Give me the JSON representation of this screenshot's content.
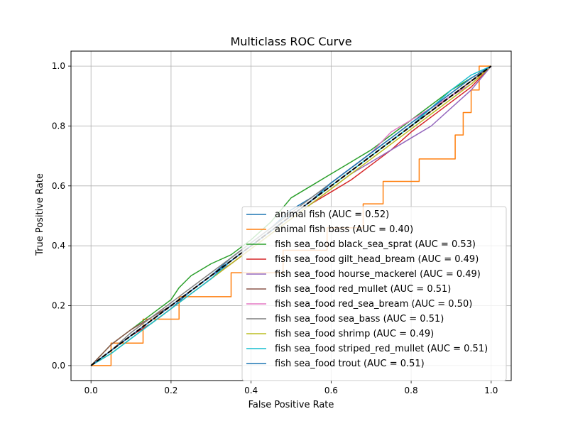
{
  "chart_data": {
    "type": "line",
    "title": "Multiclass ROC Curve",
    "xlabel": "False Positive Rate",
    "ylabel": "True Positive Rate",
    "xlim": [
      -0.05,
      1.05
    ],
    "ylim": [
      -0.05,
      1.05
    ],
    "xticks": [
      "0.0",
      "0.2",
      "0.4",
      "0.6",
      "0.8",
      "1.0"
    ],
    "yticks": [
      "0.0",
      "0.2",
      "0.4",
      "0.6",
      "0.8",
      "1.0"
    ],
    "grid": true,
    "legend_position": "lower-right",
    "series": [
      {
        "name": "animal fish (AUC = 0.52)",
        "color": "#1f77b4",
        "step": false,
        "points": [
          [
            0,
            0
          ],
          [
            0.05,
            0.05
          ],
          [
            0.1,
            0.1
          ],
          [
            0.15,
            0.14
          ],
          [
            0.2,
            0.19
          ],
          [
            0.25,
            0.25
          ],
          [
            0.3,
            0.3
          ],
          [
            0.35,
            0.36
          ],
          [
            0.4,
            0.41
          ],
          [
            0.45,
            0.46
          ],
          [
            0.5,
            0.52
          ],
          [
            0.55,
            0.56
          ],
          [
            0.6,
            0.61
          ],
          [
            0.65,
            0.66
          ],
          [
            0.7,
            0.71
          ],
          [
            0.75,
            0.76
          ],
          [
            0.8,
            0.81
          ],
          [
            0.85,
            0.86
          ],
          [
            0.9,
            0.9
          ],
          [
            0.95,
            0.95
          ],
          [
            1,
            1
          ]
        ]
      },
      {
        "name": "animal fish bass (AUC = 0.40)",
        "color": "#ff7f0e",
        "step": true,
        "points": [
          [
            0,
            0
          ],
          [
            0.05,
            0
          ],
          [
            0.05,
            0.075
          ],
          [
            0.13,
            0.075
          ],
          [
            0.13,
            0.155
          ],
          [
            0.22,
            0.155
          ],
          [
            0.22,
            0.23
          ],
          [
            0.35,
            0.23
          ],
          [
            0.35,
            0.31
          ],
          [
            0.48,
            0.31
          ],
          [
            0.48,
            0.385
          ],
          [
            0.59,
            0.385
          ],
          [
            0.59,
            0.46
          ],
          [
            0.68,
            0.46
          ],
          [
            0.68,
            0.54
          ],
          [
            0.73,
            0.54
          ],
          [
            0.73,
            0.615
          ],
          [
            0.82,
            0.615
          ],
          [
            0.82,
            0.69
          ],
          [
            0.91,
            0.69
          ],
          [
            0.91,
            0.77
          ],
          [
            0.93,
            0.77
          ],
          [
            0.93,
            0.845
          ],
          [
            0.95,
            0.845
          ],
          [
            0.95,
            0.92
          ],
          [
            0.97,
            0.92
          ],
          [
            0.97,
            1
          ],
          [
            1,
            1
          ]
        ]
      },
      {
        "name": "fish sea_food black_sea_sprat (AUC = 0.53)",
        "color": "#2ca02c",
        "step": false,
        "points": [
          [
            0,
            0
          ],
          [
            0.05,
            0.07
          ],
          [
            0.1,
            0.12
          ],
          [
            0.15,
            0.17
          ],
          [
            0.2,
            0.22
          ],
          [
            0.22,
            0.26
          ],
          [
            0.25,
            0.3
          ],
          [
            0.3,
            0.34
          ],
          [
            0.35,
            0.37
          ],
          [
            0.4,
            0.42
          ],
          [
            0.45,
            0.48
          ],
          [
            0.5,
            0.56
          ],
          [
            0.55,
            0.6
          ],
          [
            0.6,
            0.64
          ],
          [
            0.65,
            0.68
          ],
          [
            0.7,
            0.72
          ],
          [
            0.75,
            0.77
          ],
          [
            0.8,
            0.82
          ],
          [
            0.85,
            0.87
          ],
          [
            0.9,
            0.92
          ],
          [
            0.95,
            0.96
          ],
          [
            1,
            1
          ]
        ]
      },
      {
        "name": "fish sea_food gilt_head_bream (AUC = 0.49)",
        "color": "#d62728",
        "step": false,
        "points": [
          [
            0,
            0
          ],
          [
            0.05,
            0.05
          ],
          [
            0.1,
            0.1
          ],
          [
            0.15,
            0.14
          ],
          [
            0.2,
            0.19
          ],
          [
            0.25,
            0.24
          ],
          [
            0.3,
            0.29
          ],
          [
            0.35,
            0.34
          ],
          [
            0.4,
            0.39
          ],
          [
            0.45,
            0.44
          ],
          [
            0.5,
            0.49
          ],
          [
            0.55,
            0.54
          ],
          [
            0.6,
            0.58
          ],
          [
            0.65,
            0.62
          ],
          [
            0.7,
            0.67
          ],
          [
            0.75,
            0.72
          ],
          [
            0.8,
            0.78
          ],
          [
            0.85,
            0.83
          ],
          [
            0.9,
            0.88
          ],
          [
            0.95,
            0.93
          ],
          [
            1,
            1
          ]
        ]
      },
      {
        "name": "fish sea_food hourse_mackerel (AUC = 0.49)",
        "color": "#9467bd",
        "step": false,
        "points": [
          [
            0,
            0
          ],
          [
            0.05,
            0.05
          ],
          [
            0.1,
            0.1
          ],
          [
            0.15,
            0.15
          ],
          [
            0.2,
            0.2
          ],
          [
            0.25,
            0.25
          ],
          [
            0.3,
            0.3
          ],
          [
            0.35,
            0.34
          ],
          [
            0.4,
            0.39
          ],
          [
            0.45,
            0.44
          ],
          [
            0.5,
            0.49
          ],
          [
            0.55,
            0.54
          ],
          [
            0.6,
            0.59
          ],
          [
            0.65,
            0.64
          ],
          [
            0.7,
            0.68
          ],
          [
            0.75,
            0.72
          ],
          [
            0.8,
            0.76
          ],
          [
            0.85,
            0.8
          ],
          [
            0.9,
            0.86
          ],
          [
            0.95,
            0.92
          ],
          [
            1,
            1
          ]
        ]
      },
      {
        "name": "fish sea_food red_mullet (AUC = 0.51)",
        "color": "#8c564b",
        "step": false,
        "points": [
          [
            0,
            0
          ],
          [
            0.05,
            0.07
          ],
          [
            0.1,
            0.12
          ],
          [
            0.15,
            0.16
          ],
          [
            0.2,
            0.2
          ],
          [
            0.25,
            0.25
          ],
          [
            0.3,
            0.3
          ],
          [
            0.35,
            0.35
          ],
          [
            0.4,
            0.4
          ],
          [
            0.45,
            0.45
          ],
          [
            0.5,
            0.5
          ],
          [
            0.55,
            0.55
          ],
          [
            0.6,
            0.6
          ],
          [
            0.65,
            0.65
          ],
          [
            0.7,
            0.7
          ],
          [
            0.75,
            0.75
          ],
          [
            0.8,
            0.8
          ],
          [
            0.85,
            0.85
          ],
          [
            0.9,
            0.9
          ],
          [
            0.95,
            0.95
          ],
          [
            1,
            1
          ]
        ]
      },
      {
        "name": "fish sea_food red_sea_bream (AUC = 0.50)",
        "color": "#e377c2",
        "step": false,
        "points": [
          [
            0,
            0
          ],
          [
            0.05,
            0.05
          ],
          [
            0.1,
            0.1
          ],
          [
            0.15,
            0.15
          ],
          [
            0.2,
            0.2
          ],
          [
            0.25,
            0.25
          ],
          [
            0.3,
            0.3
          ],
          [
            0.35,
            0.35
          ],
          [
            0.4,
            0.4
          ],
          [
            0.45,
            0.45
          ],
          [
            0.5,
            0.5
          ],
          [
            0.55,
            0.55
          ],
          [
            0.6,
            0.61
          ],
          [
            0.65,
            0.66
          ],
          [
            0.7,
            0.71
          ],
          [
            0.75,
            0.78
          ],
          [
            0.8,
            0.82
          ],
          [
            0.85,
            0.86
          ],
          [
            0.9,
            0.9
          ],
          [
            0.95,
            0.94
          ],
          [
            1,
            1
          ]
        ]
      },
      {
        "name": "fish sea_food sea_bass (AUC = 0.51)",
        "color": "#7f7f7f",
        "step": false,
        "points": [
          [
            0,
            0
          ],
          [
            0.05,
            0.05
          ],
          [
            0.1,
            0.11
          ],
          [
            0.15,
            0.16
          ],
          [
            0.2,
            0.21
          ],
          [
            0.25,
            0.26
          ],
          [
            0.3,
            0.31
          ],
          [
            0.35,
            0.36
          ],
          [
            0.4,
            0.41
          ],
          [
            0.45,
            0.46
          ],
          [
            0.5,
            0.51
          ],
          [
            0.55,
            0.56
          ],
          [
            0.6,
            0.61
          ],
          [
            0.65,
            0.66
          ],
          [
            0.7,
            0.71
          ],
          [
            0.75,
            0.76
          ],
          [
            0.8,
            0.81
          ],
          [
            0.85,
            0.86
          ],
          [
            0.9,
            0.91
          ],
          [
            0.95,
            0.96
          ],
          [
            1,
            1
          ]
        ]
      },
      {
        "name": "fish sea_food shrimp (AUC = 0.49)",
        "color": "#bcbd22",
        "step": false,
        "points": [
          [
            0,
            0
          ],
          [
            0.05,
            0.04
          ],
          [
            0.1,
            0.09
          ],
          [
            0.15,
            0.14
          ],
          [
            0.2,
            0.19
          ],
          [
            0.25,
            0.24
          ],
          [
            0.3,
            0.29
          ],
          [
            0.35,
            0.34
          ],
          [
            0.4,
            0.39
          ],
          [
            0.45,
            0.44
          ],
          [
            0.5,
            0.49
          ],
          [
            0.55,
            0.54
          ],
          [
            0.6,
            0.59
          ],
          [
            0.65,
            0.64
          ],
          [
            0.7,
            0.69
          ],
          [
            0.75,
            0.74
          ],
          [
            0.8,
            0.79
          ],
          [
            0.85,
            0.84
          ],
          [
            0.9,
            0.89
          ],
          [
            0.95,
            0.94
          ],
          [
            1,
            1
          ]
        ]
      },
      {
        "name": "fish sea_food striped_red_mullet (AUC = 0.51)",
        "color": "#17becf",
        "step": false,
        "points": [
          [
            0,
            0
          ],
          [
            0.05,
            0.04
          ],
          [
            0.1,
            0.09
          ],
          [
            0.15,
            0.14
          ],
          [
            0.2,
            0.19
          ],
          [
            0.25,
            0.24
          ],
          [
            0.3,
            0.29
          ],
          [
            0.35,
            0.35
          ],
          [
            0.4,
            0.4
          ],
          [
            0.45,
            0.45
          ],
          [
            0.5,
            0.5
          ],
          [
            0.55,
            0.55
          ],
          [
            0.6,
            0.6
          ],
          [
            0.65,
            0.65
          ],
          [
            0.7,
            0.7
          ],
          [
            0.75,
            0.75
          ],
          [
            0.8,
            0.8
          ],
          [
            0.85,
            0.86
          ],
          [
            0.9,
            0.92
          ],
          [
            0.95,
            0.97
          ],
          [
            1,
            1
          ]
        ]
      },
      {
        "name": "fish sea_food trout (AUC = 0.51)",
        "color": "#1f77b4",
        "step": false,
        "points": [
          [
            0,
            0
          ],
          [
            0.05,
            0.05
          ],
          [
            0.1,
            0.1
          ],
          [
            0.15,
            0.15
          ],
          [
            0.2,
            0.2
          ],
          [
            0.25,
            0.25
          ],
          [
            0.3,
            0.3
          ],
          [
            0.35,
            0.35
          ],
          [
            0.4,
            0.4
          ],
          [
            0.45,
            0.45
          ],
          [
            0.5,
            0.5
          ],
          [
            0.55,
            0.55
          ],
          [
            0.6,
            0.61
          ],
          [
            0.65,
            0.66
          ],
          [
            0.7,
            0.71
          ],
          [
            0.75,
            0.76
          ],
          [
            0.8,
            0.81
          ],
          [
            0.85,
            0.86
          ],
          [
            0.9,
            0.91
          ],
          [
            0.95,
            0.96
          ],
          [
            1,
            1
          ]
        ]
      }
    ],
    "reference_line": {
      "color": "#000000",
      "dash": "dashed",
      "points": [
        [
          0,
          0
        ],
        [
          1,
          1
        ]
      ]
    }
  }
}
